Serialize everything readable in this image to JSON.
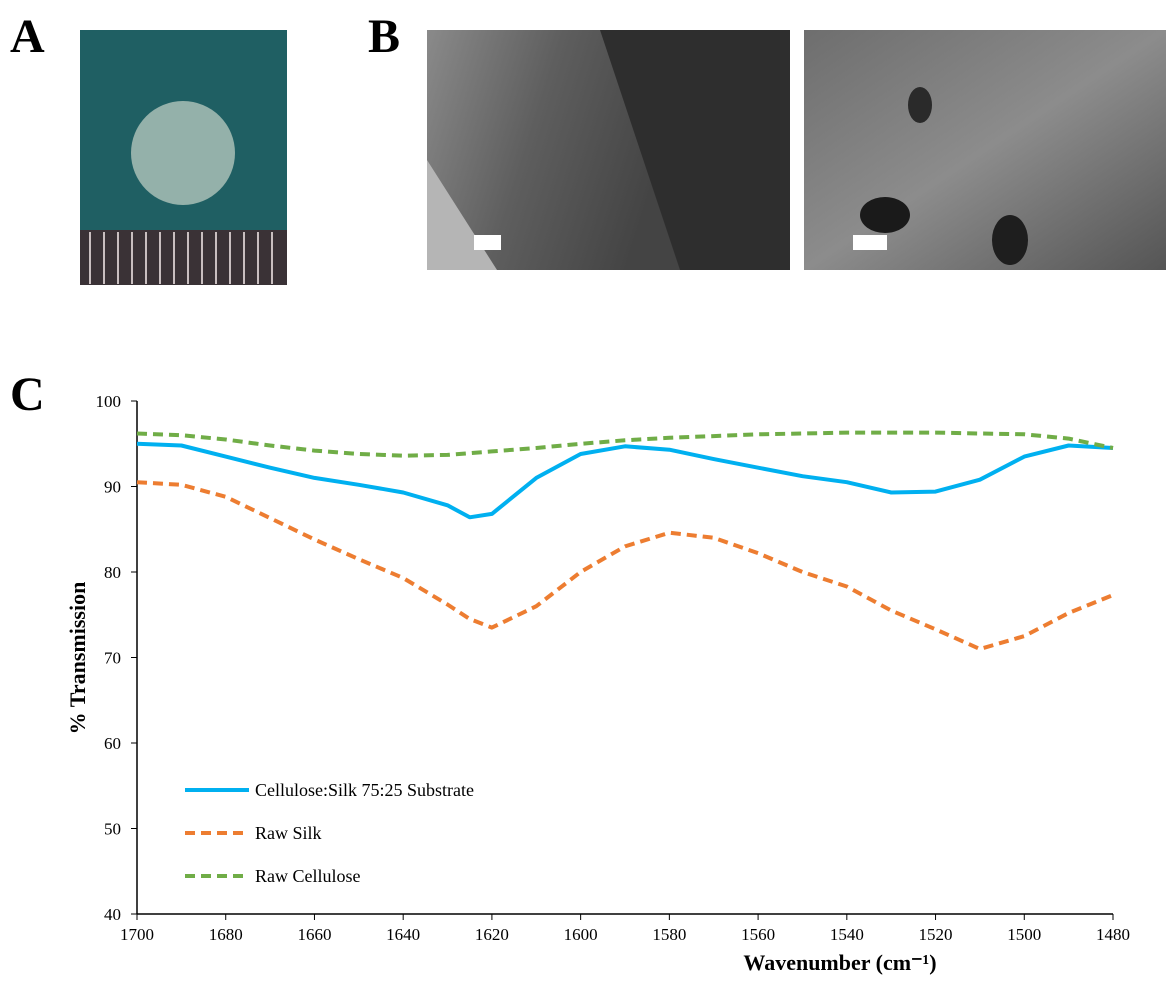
{
  "panel_labels": [
    "A",
    "B",
    "C"
  ],
  "chart_data": {
    "type": "line",
    "x_label": "Wavenumber (cm⁻¹)",
    "y_label": "% Transmission",
    "x": [
      1700,
      1690,
      1680,
      1670,
      1660,
      1650,
      1640,
      1630,
      1625,
      1620,
      1610,
      1600,
      1590,
      1580,
      1570,
      1560,
      1550,
      1540,
      1530,
      1520,
      1510,
      1500,
      1490,
      1480
    ],
    "series": [
      {
        "name": "Cellulose:Silk 75:25 Substrate",
        "color": "#00b0f0",
        "dashed": false,
        "values": [
          95,
          94.8,
          93.5,
          92.2,
          91,
          90.2,
          89.3,
          87.8,
          86.4,
          86.8,
          91,
          93.8,
          94.7,
          94.3,
          93.2,
          92.2,
          91.2,
          90.5,
          89.3,
          89.4,
          90.8,
          93.5,
          94.8,
          94.5
        ]
      },
      {
        "name": "Raw Silk",
        "color": "#ed7d31",
        "dashed": true,
        "values": [
          90.5,
          90.2,
          88.8,
          86.3,
          83.8,
          81.5,
          79.3,
          76.2,
          74.5,
          73.5,
          76,
          80,
          83,
          84.6,
          84,
          82.2,
          80,
          78.3,
          75.5,
          73.3,
          71,
          72.5,
          75.2,
          77.3
        ]
      },
      {
        "name": "Raw Cellulose",
        "color": "#70ad47",
        "dashed": true,
        "values": [
          96.2,
          96,
          95.5,
          94.8,
          94.2,
          93.8,
          93.6,
          93.7,
          93.9,
          94.1,
          94.5,
          95,
          95.4,
          95.7,
          95.9,
          96.1,
          96.2,
          96.3,
          96.3,
          96.3,
          96.2,
          96.1,
          95.6,
          94.5
        ]
      }
    ],
    "xlim": [
      1700,
      1480
    ],
    "xticks": [
      1700,
      1680,
      1660,
      1640,
      1620,
      1600,
      1580,
      1560,
      1540,
      1520,
      1500,
      1480
    ],
    "ylim": [
      40,
      100
    ],
    "yticks": [
      40,
      50,
      60,
      70,
      80,
      90,
      100
    ],
    "grid": false,
    "legend": "lower left"
  }
}
